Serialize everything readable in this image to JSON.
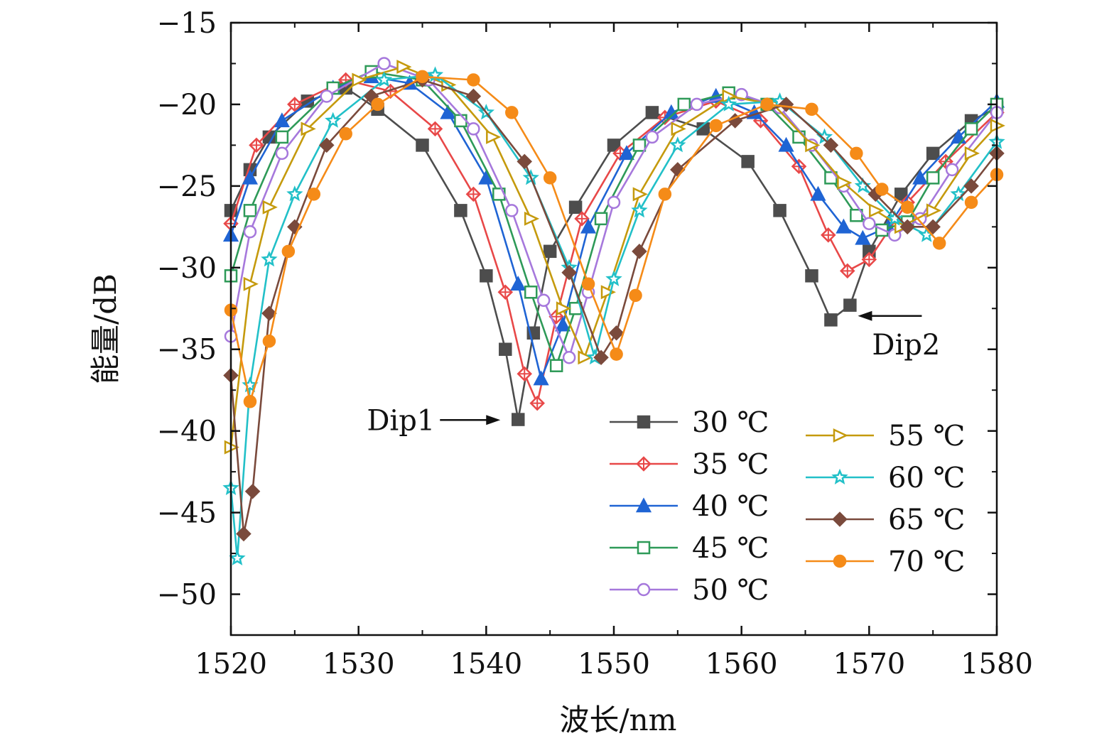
{
  "chart_data": {
    "type": "line",
    "title": "",
    "xlabel": "波长/nm",
    "ylabel": "能量/dB",
    "xlim": [
      1520,
      1580
    ],
    "ylim": [
      -52.5,
      -15
    ],
    "xticks": [
      1520,
      1530,
      1540,
      1550,
      1560,
      1570,
      1580
    ],
    "xtick_labels": [
      "1520",
      "1530",
      "1540",
      "1550",
      "1560",
      "1570",
      "1580"
    ],
    "yticks": [
      -15,
      -20,
      -25,
      -30,
      -35,
      -40,
      -45,
      -50
    ],
    "ytick_labels": [
      "−15",
      "−20",
      "−25",
      "−30",
      "−35",
      "−40",
      "−45",
      "−50"
    ],
    "grid": false,
    "legend_position": "lower-right",
    "series": [
      {
        "name": "30 ℃",
        "color": "#4d4d4d",
        "marker": "square-filled",
        "x": [
          1520,
          1521.5,
          1523,
          1526,
          1529,
          1531.5,
          1535,
          1538,
          1540,
          1541.5,
          1542.5,
          1543.7,
          1545,
          1547,
          1550,
          1553,
          1557,
          1560.5,
          1563,
          1565.5,
          1567,
          1568.5,
          1570,
          1572.5,
          1575,
          1578,
          1580
        ],
        "y": [
          -26.5,
          -24,
          -22,
          -19.8,
          -19,
          -20.3,
          -22.5,
          -26.5,
          -30.5,
          -35,
          -39.3,
          -34,
          -29,
          -26.3,
          -22.5,
          -20.5,
          -21.5,
          -23.5,
          -26.5,
          -30.5,
          -33.2,
          -32.3,
          -29,
          -25.5,
          -23,
          -21,
          -20.2
        ]
      },
      {
        "name": "35 ℃",
        "color": "#e84848",
        "marker": "diamond-cross",
        "x": [
          1520,
          1522,
          1525,
          1529,
          1532.5,
          1536,
          1539,
          1541.5,
          1543,
          1544,
          1545.5,
          1547.5,
          1550.5,
          1554,
          1558,
          1561.5,
          1564.5,
          1566.8,
          1568.3,
          1570,
          1573,
          1576,
          1580
        ],
        "y": [
          -27.3,
          -22.5,
          -20,
          -18.5,
          -19.2,
          -21.5,
          -25.5,
          -31.5,
          -36.5,
          -38.3,
          -33,
          -27,
          -23,
          -20.8,
          -19.8,
          -21,
          -23.8,
          -28,
          -30.2,
          -29.5,
          -26,
          -23.5,
          -20.5
        ]
      },
      {
        "name": "40 ℃",
        "color": "#1f64d4",
        "marker": "triangle-filled",
        "x": [
          1520,
          1521.5,
          1524,
          1528,
          1531,
          1534,
          1537,
          1540,
          1542.5,
          1544.3,
          1546,
          1548,
          1551,
          1554.5,
          1558,
          1561,
          1563.5,
          1566,
          1568,
          1569.5,
          1571.5,
          1574,
          1577,
          1580
        ],
        "y": [
          -28,
          -24.5,
          -21,
          -19,
          -18.3,
          -18.7,
          -20.5,
          -24.5,
          -31,
          -36.8,
          -33.5,
          -27.5,
          -23,
          -20.5,
          -19.5,
          -20.5,
          -22.5,
          -25.5,
          -27.5,
          -28.2,
          -27.5,
          -24.5,
          -22,
          -19.8
        ]
      },
      {
        "name": "45 ℃",
        "color": "#2e9a58",
        "marker": "square-open",
        "x": [
          1520,
          1521.5,
          1524,
          1528,
          1531,
          1535,
          1538,
          1541,
          1543.5,
          1545.5,
          1547,
          1549,
          1552,
          1555.5,
          1559,
          1562,
          1564.5,
          1567,
          1569,
          1571,
          1573,
          1575,
          1578,
          1580
        ],
        "y": [
          -30.5,
          -26.5,
          -22,
          -19,
          -18,
          -18.5,
          -21,
          -25.5,
          -31.5,
          -36,
          -32.5,
          -27,
          -22.5,
          -20,
          -19.3,
          -20,
          -22,
          -24.5,
          -26.8,
          -27.7,
          -27.2,
          -24.5,
          -21.5,
          -20
        ]
      },
      {
        "name": "50 ℃",
        "color": "#a678dc",
        "marker": "circle-open",
        "x": [
          1520,
          1521.5,
          1524,
          1527.5,
          1532,
          1535.5,
          1539,
          1542,
          1544.5,
          1546.5,
          1548,
          1550,
          1553,
          1556.5,
          1560,
          1563,
          1565.5,
          1568,
          1570,
          1572,
          1574,
          1576.5,
          1580
        ],
        "y": [
          -34.2,
          -27.8,
          -23,
          -19.5,
          -17.5,
          -18.5,
          -21.5,
          -26.5,
          -32,
          -35.5,
          -31.5,
          -26,
          -22,
          -20,
          -19.4,
          -20.2,
          -22.5,
          -25,
          -27.3,
          -28,
          -27,
          -24,
          -20.5
        ]
      },
      {
        "name": "55 ℃",
        "color": "#c59a0d",
        "marker": "triangle-right-open",
        "x": [
          1520,
          1521.5,
          1523,
          1526,
          1530,
          1533.5,
          1537,
          1540.5,
          1543.5,
          1546,
          1547.7,
          1549.5,
          1552,
          1555,
          1559,
          1562.5,
          1565.5,
          1568,
          1570.5,
          1572.5,
          1575,
          1578,
          1580
        ],
        "y": [
          -41,
          -31,
          -26.3,
          -21.5,
          -18.5,
          -17.7,
          -18.8,
          -22,
          -27,
          -32.5,
          -35.5,
          -31.5,
          -25.5,
          -21.5,
          -19.5,
          -20,
          -22.5,
          -24.8,
          -26.5,
          -27.5,
          -26.5,
          -23,
          -21.3
        ]
      },
      {
        "name": "60 ℃",
        "color": "#22c0c8",
        "marker": "star-open",
        "x": [
          1520,
          1520.5,
          1521.5,
          1523,
          1525,
          1528,
          1532,
          1536,
          1540,
          1543.5,
          1546.5,
          1548.5,
          1550,
          1552,
          1555,
          1559,
          1563,
          1566.5,
          1569.5,
          1572,
          1574.5,
          1577,
          1580
        ],
        "y": [
          -43.5,
          -47.8,
          -37.2,
          -29.5,
          -25.5,
          -21,
          -18.5,
          -18.2,
          -20.5,
          -24.5,
          -30,
          -35.5,
          -30.7,
          -26.5,
          -22.5,
          -20,
          -19.8,
          -22,
          -25,
          -27,
          -28,
          -25.5,
          -22.3
        ]
      },
      {
        "name": "65 ℃",
        "color": "#7a4a3c",
        "marker": "diamond-filled",
        "x": [
          1520,
          1521,
          1521.7,
          1523,
          1525,
          1527.5,
          1531,
          1535,
          1539,
          1543,
          1546.5,
          1549,
          1550.2,
          1552,
          1555,
          1559.5,
          1563.5,
          1567,
          1570.5,
          1573,
          1575,
          1578,
          1580
        ],
        "y": [
          -36.6,
          -46.3,
          -43.7,
          -32.8,
          -27.5,
          -22.5,
          -19.5,
          -18.5,
          -19.5,
          -23.5,
          -30.3,
          -35.5,
          -34,
          -29,
          -24,
          -21,
          -20,
          -22.5,
          -25.5,
          -27.5,
          -27.5,
          -25,
          -23
        ]
      },
      {
        "name": "70 ℃",
        "color": "#f58b18",
        "marker": "circle-filled",
        "x": [
          1520,
          1521.5,
          1523,
          1524.5,
          1526.5,
          1529,
          1531.5,
          1535,
          1539,
          1542,
          1545,
          1548,
          1550.2,
          1551.7,
          1554,
          1558,
          1562,
          1565.5,
          1569,
          1571,
          1573,
          1575.5,
          1578,
          1580
        ],
        "y": [
          -32.6,
          -38.2,
          -34.5,
          -29,
          -25.5,
          -21.8,
          -20,
          -18.3,
          -18.5,
          -20.5,
          -24.5,
          -31,
          -35.3,
          -31.7,
          -25.5,
          -21.3,
          -20,
          -20.3,
          -23,
          -25.2,
          -26.3,
          -28.5,
          -26,
          -24.3
        ]
      }
    ],
    "annotations": [
      {
        "text": "Dip1",
        "x": 1542.5,
        "y": -39.2
      },
      {
        "text": "Dip2",
        "x": 1567,
        "y": -33
      }
    ]
  }
}
